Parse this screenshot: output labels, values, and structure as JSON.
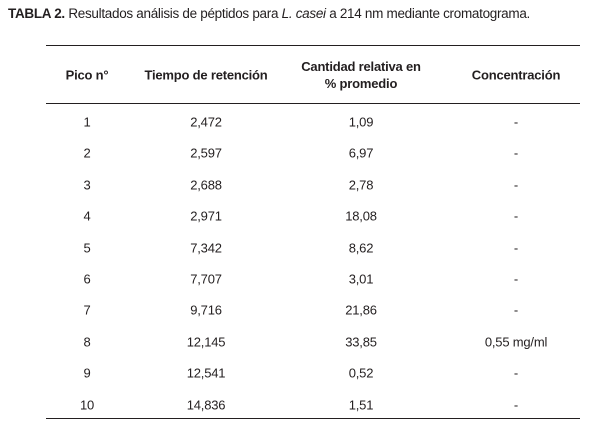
{
  "caption": {
    "label": "TABLA 2.",
    "text_before": "Resultados análisis de péptidos para",
    "species": "L. casei",
    "text_after": "a 214 nm mediante cromatograma."
  },
  "table": {
    "headers": [
      [
        "Pico n°"
      ],
      [
        "Tiempo de retención"
      ],
      [
        "Cantidad relativa en",
        "% promedio"
      ],
      [
        "Concentración"
      ]
    ],
    "rows": [
      [
        "1",
        "2,472",
        "1,09",
        "-"
      ],
      [
        "2",
        "2,597",
        "6,97",
        "-"
      ],
      [
        "3",
        "2,688",
        "2,78",
        "-"
      ],
      [
        "4",
        "2,971",
        "18,08",
        "-"
      ],
      [
        "5",
        "7,342",
        "8,62",
        "-"
      ],
      [
        "6",
        "7,707",
        "3,01",
        "-"
      ],
      [
        "7",
        "9,716",
        "21,86",
        "-"
      ],
      [
        "8",
        "12,145",
        "33,85",
        "0,55 mg/ml"
      ],
      [
        "9",
        "12,541",
        "0,52",
        "-"
      ],
      [
        "10",
        "14,836",
        "1,51",
        "-"
      ]
    ]
  }
}
